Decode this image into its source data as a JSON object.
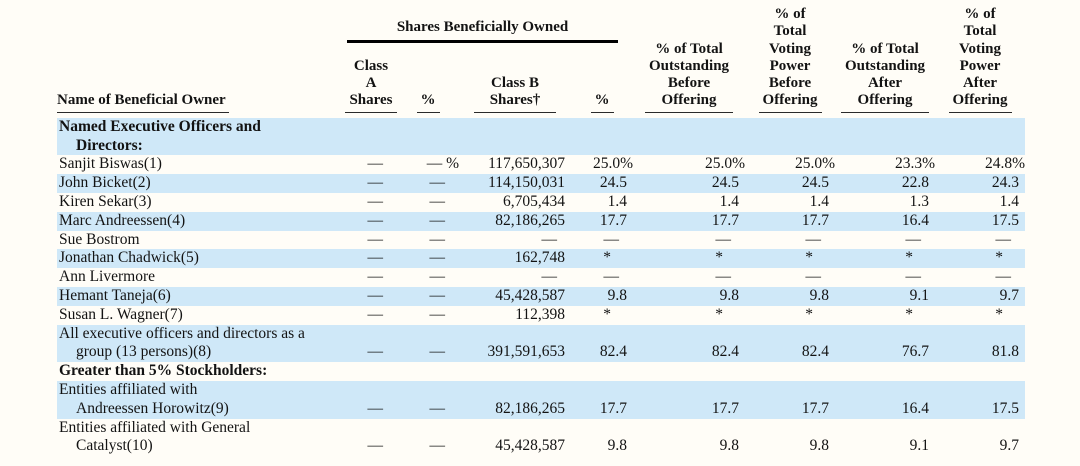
{
  "table": {
    "group_header": "Shares Beneficially Owned",
    "columns": {
      "name": "Name of Beneficial Owner",
      "class_a": "Class A\nShares",
      "class_a_pct": "%",
      "class_b": "Class B\nShares†",
      "class_b_pct": "%",
      "out_before": "% of Total\nOutstanding\nBefore\nOffering",
      "vote_before": "% of\nTotal\nVoting\nPower\nBefore\nOffering",
      "out_after": "% of Total\nOutstanding\nAfter\nOffering",
      "vote_after": "% of\nTotal\nVoting\nPower\nAfter\nOffering"
    },
    "rows": [
      {
        "name": "Named Executive Officers and\nDirectors:",
        "bold": true,
        "shaded": true,
        "values": [
          "",
          "",
          "",
          "",
          "",
          "",
          "",
          ""
        ]
      },
      {
        "name": "Sanjit Biswas(1)",
        "bold": false,
        "shaded": false,
        "values": [
          "—",
          "— %",
          "117,650,307",
          "25.0%",
          "25.0%",
          "25.0%",
          "23.3%",
          "24.8%"
        ]
      },
      {
        "name": "John Bicket(2)",
        "bold": false,
        "shaded": true,
        "values": [
          "—",
          "—",
          "114,150,031",
          "24.5",
          "24.5",
          "24.5",
          "22.8",
          "24.3"
        ]
      },
      {
        "name": "Kiren Sekar(3)",
        "bold": false,
        "shaded": false,
        "values": [
          "—",
          "—",
          "6,705,434",
          "1.4",
          "1.4",
          "1.4",
          "1.3",
          "1.4"
        ]
      },
      {
        "name": "Marc Andreessen(4)",
        "bold": false,
        "shaded": true,
        "values": [
          "—",
          "—",
          "82,186,265",
          "17.7",
          "17.7",
          "17.7",
          "16.4",
          "17.5"
        ]
      },
      {
        "name": "Sue Bostrom",
        "bold": false,
        "shaded": false,
        "values": [
          "—",
          "—",
          "—",
          "—",
          "—",
          "—",
          "—",
          "—"
        ]
      },
      {
        "name": "Jonathan Chadwick(5)",
        "bold": false,
        "shaded": true,
        "values": [
          "—",
          "—",
          "162,748",
          "*",
          "*",
          "*",
          "*",
          "*"
        ]
      },
      {
        "name": "Ann Livermore",
        "bold": false,
        "shaded": false,
        "values": [
          "—",
          "—",
          "—",
          "—",
          "—",
          "—",
          "—",
          "—"
        ]
      },
      {
        "name": "Hemant Taneja(6)",
        "bold": false,
        "shaded": true,
        "values": [
          "—",
          "—",
          "45,428,587",
          "9.8",
          "9.8",
          "9.8",
          "9.1",
          "9.7"
        ]
      },
      {
        "name": "Susan L. Wagner(7)",
        "bold": false,
        "shaded": false,
        "values": [
          "—",
          "—",
          "112,398",
          "*",
          "*",
          "*",
          "*",
          "*"
        ]
      },
      {
        "name": "All executive officers and directors as a\ngroup (13 persons)(8)",
        "bold": false,
        "shaded": true,
        "values": [
          "—",
          "—",
          "391,591,653",
          "82.4",
          "82.4",
          "82.4",
          "76.7",
          "81.8"
        ]
      },
      {
        "name": "Greater than 5% Stockholders:",
        "bold": true,
        "shaded": false,
        "values": [
          "",
          "",
          "",
          "",
          "",
          "",
          "",
          ""
        ]
      },
      {
        "name": "Entities affiliated with\nAndreessen Horowitz(9)",
        "bold": false,
        "shaded": true,
        "values": [
          "—",
          "—",
          "82,186,265",
          "17.7",
          "17.7",
          "17.7",
          "16.4",
          "17.5"
        ]
      },
      {
        "name": "Entities affiliated with General\nCatalyst(10)",
        "bold": false,
        "shaded": false,
        "values": [
          "—",
          "—",
          "45,428,587",
          "9.8",
          "9.8",
          "9.8",
          "9.1",
          "9.7"
        ]
      }
    ],
    "colors": {
      "row_highlight": "#cfe8f8",
      "rule": "#000000",
      "text": "#131313"
    }
  }
}
